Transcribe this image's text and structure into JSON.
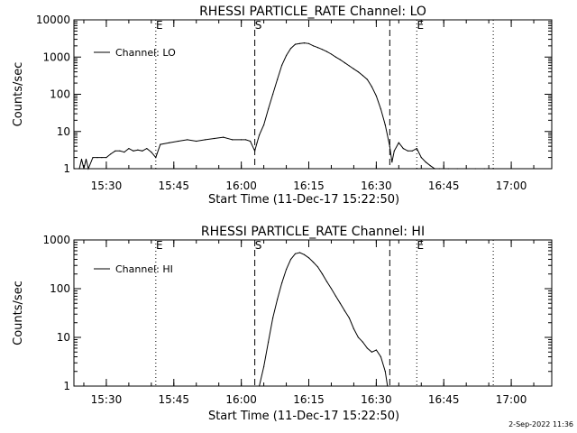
{
  "chart_data": [
    {
      "type": "line",
      "title": "RHESSI PARTICLE_RATE Channel: LO",
      "xlabel": "Start Time (11-Dec-17 15:22:50)",
      "ylabel": "Counts/sec",
      "yscale": "log",
      "ylim": [
        1,
        10000
      ],
      "xlim_minutes": [
        15.38,
        17.15
      ],
      "x_ticks": [
        "15:30",
        "15:45",
        "16:00",
        "16:15",
        "16:30",
        "16:45",
        "17:00"
      ],
      "y_ticks": [
        "1",
        "10",
        "100",
        "1000",
        "10000"
      ],
      "legend": {
        "label": "Channel: LO",
        "position": "top-left"
      },
      "markers": [
        {
          "type": "dotted",
          "time": "15:41",
          "letter": "E"
        },
        {
          "type": "dashed",
          "time": "16:03",
          "letter": "S"
        },
        {
          "type": "dashed",
          "time": "16:33",
          "letter": ""
        },
        {
          "type": "dotted",
          "time": "16:39",
          "letter": "E"
        },
        {
          "type": "dotted",
          "time": "16:56",
          "letter": ""
        }
      ],
      "series": [
        {
          "name": "Channel: LO",
          "x": [
            "15:23",
            "15:24",
            "15:24.5",
            "15:25",
            "15:25.5",
            "15:26",
            "15:27",
            "15:28",
            "15:29",
            "15:30",
            "15:31",
            "15:32",
            "15:33",
            "15:34",
            "15:35",
            "15:36",
            "15:37",
            "15:38",
            "15:39",
            "15:40",
            "15:41",
            "15:42",
            "15:44",
            "15:46",
            "15:48",
            "15:50",
            "15:52",
            "15:54",
            "15:56",
            "15:58",
            "16:00",
            "16:01",
            "16:02",
            "16:03",
            "16:03.5",
            "16:04",
            "16:05",
            "16:06",
            "16:07",
            "16:08",
            "16:09",
            "16:10",
            "16:11",
            "16:12",
            "16:13",
            "16:14",
            "16:15",
            "16:16",
            "16:17",
            "16:18",
            "16:19",
            "16:20",
            "16:21",
            "16:22",
            "16:23",
            "16:24",
            "16:25",
            "16:26",
            "16:27",
            "16:28",
            "16:29",
            "16:30",
            "16:31",
            "16:32",
            "16:33",
            "16:33.5",
            "16:34",
            "16:35",
            "16:36",
            "16:37",
            "16:38",
            "16:39",
            "16:40",
            "16:41",
            "16:42",
            "16:43",
            "16:44",
            "16:45",
            "16:46",
            "16:48",
            "16:50",
            "16:52",
            "16:54",
            "16:56"
          ],
          "values": [
            1,
            1,
            1.8,
            1,
            1.8,
            1,
            2,
            2,
            2,
            2,
            2.5,
            3,
            3,
            2.8,
            3.5,
            3,
            3.2,
            3,
            3.5,
            2.8,
            2,
            4.5,
            5,
            5.5,
            6,
            5.5,
            6,
            6.5,
            7,
            6,
            6,
            6,
            5.5,
            3,
            5,
            8,
            15,
            40,
            100,
            250,
            600,
            1100,
            1700,
            2200,
            2300,
            2400,
            2300,
            2000,
            1800,
            1600,
            1400,
            1200,
            1000,
            850,
            700,
            580,
            480,
            400,
            320,
            250,
            160,
            90,
            40,
            15,
            4,
            1.5,
            3,
            5,
            3.5,
            3,
            3,
            3.5,
            2,
            1.5,
            1.2,
            1,
            1,
            1,
            1,
            1,
            1,
            1,
            1,
            1
          ]
        }
      ]
    },
    {
      "type": "line",
      "title": "RHESSI PARTICLE_RATE Channel: HI",
      "xlabel": "Start Time (11-Dec-17 15:22:50)",
      "ylabel": "Counts/sec",
      "yscale": "log",
      "ylim": [
        1,
        1000
      ],
      "xlim_minutes": [
        15.38,
        17.15
      ],
      "x_ticks": [
        "15:30",
        "15:45",
        "16:00",
        "16:15",
        "16:30",
        "16:45",
        "17:00"
      ],
      "y_ticks": [
        "1",
        "10",
        "100",
        "1000"
      ],
      "legend": {
        "label": "Channel: HI",
        "position": "top-left"
      },
      "markers": [
        {
          "type": "dotted",
          "time": "15:41",
          "letter": "E"
        },
        {
          "type": "dashed",
          "time": "16:03",
          "letter": "S"
        },
        {
          "type": "dashed",
          "time": "16:33",
          "letter": ""
        },
        {
          "type": "dotted",
          "time": "16:39",
          "letter": "E"
        },
        {
          "type": "dotted",
          "time": "16:56",
          "letter": ""
        }
      ],
      "series": [
        {
          "name": "Channel: HI",
          "x": [
            "16:04",
            "16:05",
            "16:06",
            "16:07",
            "16:08",
            "16:09",
            "16:10",
            "16:11",
            "16:12",
            "16:13",
            "16:14",
            "16:15",
            "16:16",
            "16:17",
            "16:18",
            "16:19",
            "16:20",
            "16:21",
            "16:22",
            "16:23",
            "16:24",
            "16:25",
            "16:26",
            "16:27",
            "16:28",
            "16:29",
            "16:30",
            "16:31",
            "16:32",
            "16:32.5"
          ],
          "values": [
            1,
            2.5,
            8,
            25,
            60,
            130,
            250,
            400,
            520,
            550,
            500,
            430,
            350,
            280,
            200,
            140,
            100,
            70,
            50,
            35,
            25,
            15,
            10,
            8,
            6,
            5,
            5.5,
            4,
            2,
            1
          ]
        }
      ]
    }
  ],
  "footer": {
    "timestamp": "2-Sep-2022 11:36"
  },
  "colors": {
    "line": "#000000",
    "background": "#ffffff"
  }
}
